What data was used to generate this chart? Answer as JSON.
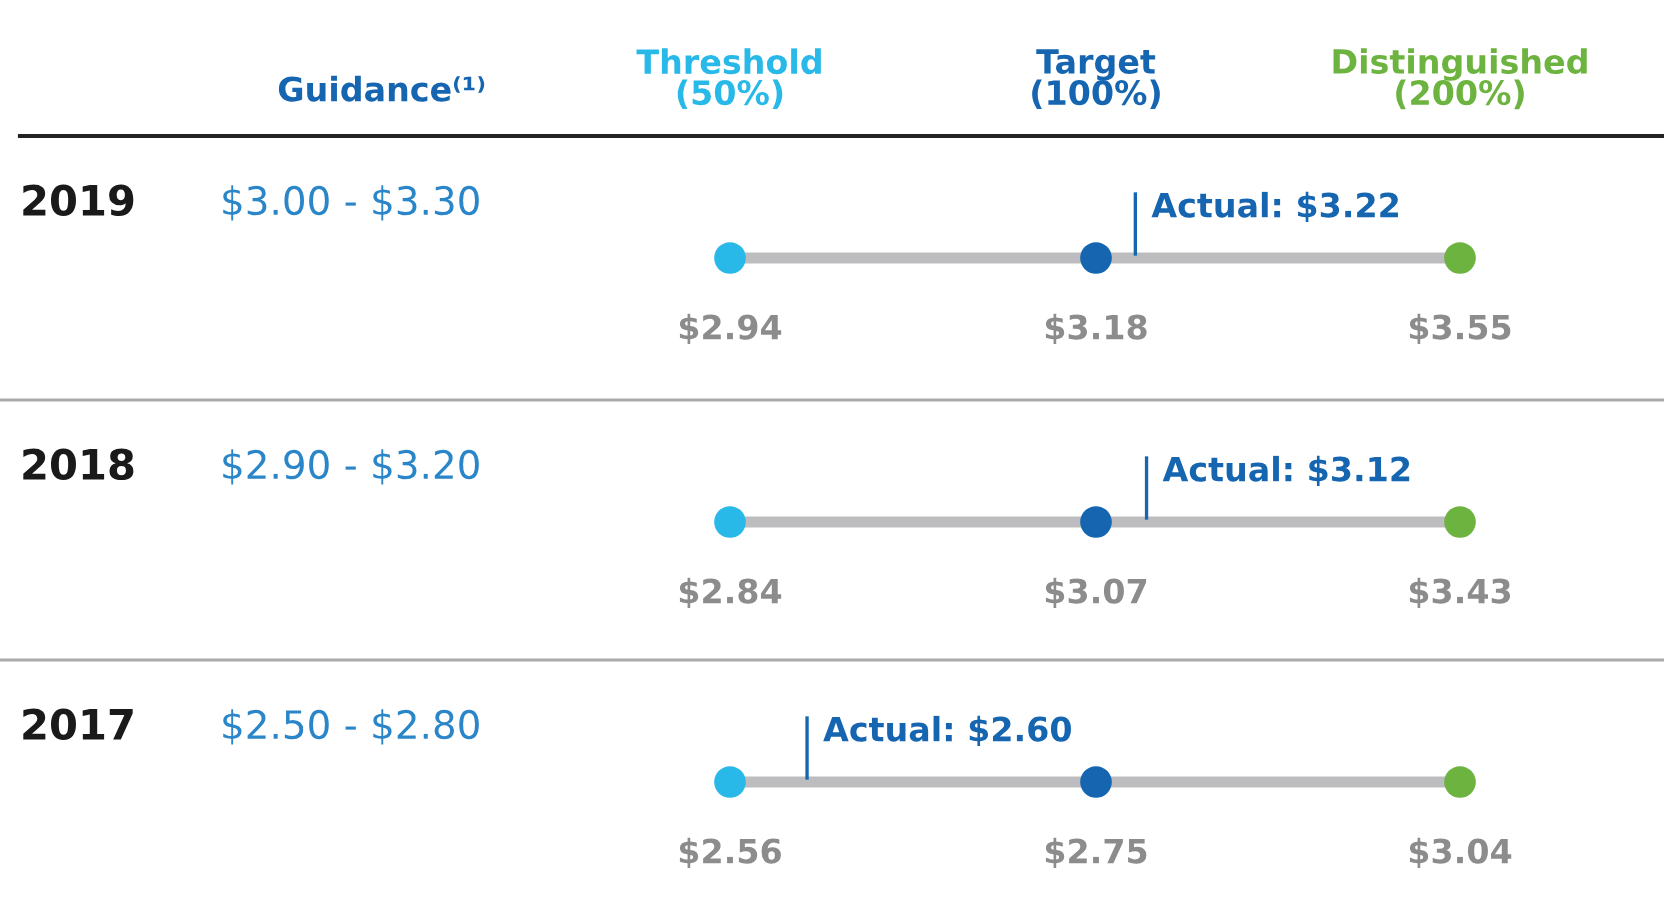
{
  "chart_data": {
    "type": "other",
    "annotations": [
      "Guidance⁽¹⁾",
      "$3.00 - $3.30",
      "$2.90 - $3.20",
      "$2.50 - $2.80"
    ],
    "categories": [
      "Threshold\n(50%)",
      "Target\n(100%)",
      "Distinguished\n(200%)"
    ],
    "colors": [
      "#29b9e8",
      "#1565b0",
      "#6cb33f"
    ],
    "series": [
      {
        "type": "scatter",
        "name": "2019",
        "values": [
          2.94,
          3.18,
          3.55
        ],
        "value_labels": [
          "$2.94",
          "$3.18",
          "$3.55"
        ]
      },
      {
        "type": "line",
        "color": "#1565b0",
        "values": [
          null,
          3.22,
          null
        ],
        "value_labels": [
          null,
          "Actual: $3.22",
          null
        ]
      },
      {
        "type": "scatter",
        "name": "2018",
        "values": [
          2.84,
          3.07,
          3.43
        ],
        "value_labels": [
          "$2.84",
          "$3.07",
          "$3.43"
        ]
      },
      {
        "type": "line",
        "color": "#1565b0",
        "values": [
          null,
          3.12,
          null
        ],
        "value_labels": [
          null,
          "Actual: $3.12",
          null
        ]
      },
      {
        "type": "scatter",
        "name": "2017",
        "values": [
          2.56,
          2.75,
          3.04
        ],
        "value_labels": [
          "$2.56",
          "$2.75",
          "$3.04"
        ]
      },
      {
        "type": "line",
        "color": "#1565b0",
        "values": [
          2.6,
          null,
          null
        ],
        "value_labels": [
          "Actual: $2.60",
          null,
          null
        ]
      }
    ]
  }
}
